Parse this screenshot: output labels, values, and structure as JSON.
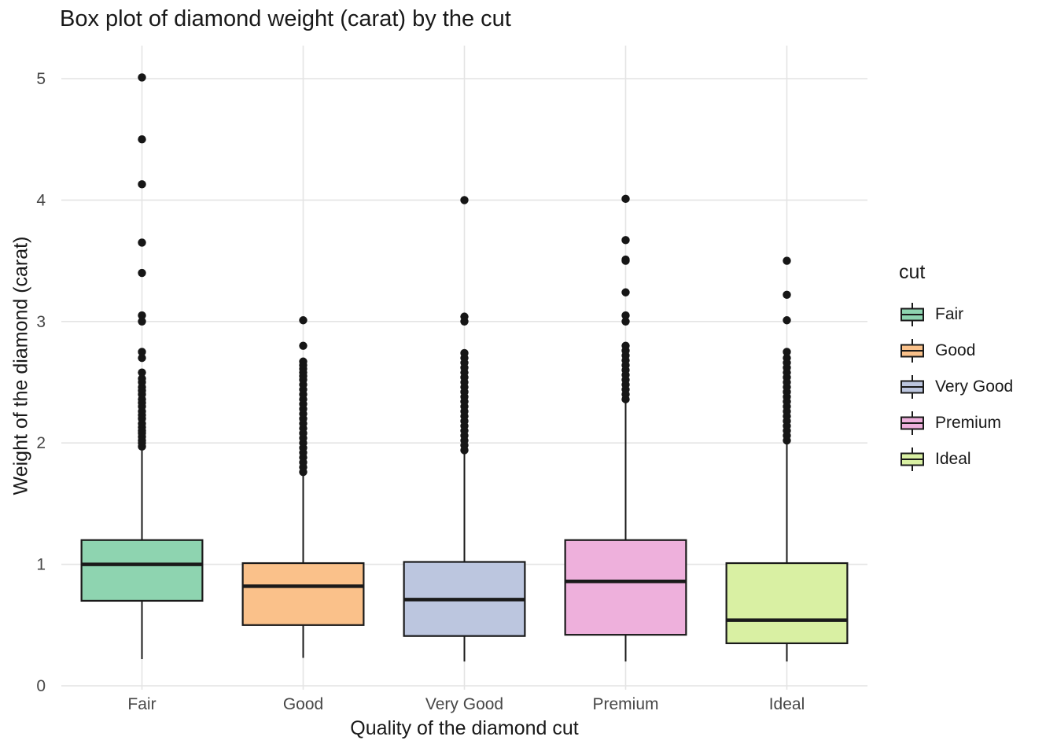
{
  "chart_data": {
    "type": "boxplot",
    "title": "Box plot of diamond weight (carat) by the cut",
    "xlabel": "Quality of the diamond cut",
    "ylabel": "Weight of the diamond (carat)",
    "legend_title": "cut",
    "legend_position": "right",
    "grid": true,
    "ylim": [
      0,
      5.2
    ],
    "yticks": [
      0,
      1,
      2,
      3,
      4,
      5
    ],
    "categories": [
      "Fair",
      "Good",
      "Very Good",
      "Premium",
      "Ideal"
    ],
    "colors": {
      "box_border": "#1a1a1a",
      "outlier": "#161616",
      "gridline": "#e4e4e4",
      "tick_text": "#474747"
    },
    "series": [
      {
        "name": "Fair",
        "color": "#8ED4B0",
        "whisker_low": 0.22,
        "q1": 0.7,
        "median": 1.0,
        "q3": 1.2,
        "whisker_high": 1.95,
        "outliers": [
          1.97,
          2.0,
          2.02,
          2.05,
          2.08,
          2.1,
          2.13,
          2.16,
          2.2,
          2.23,
          2.26,
          2.3,
          2.33,
          2.36,
          2.4,
          2.43,
          2.46,
          2.5,
          2.53,
          2.58,
          2.7,
          2.75,
          3.0,
          3.05,
          3.4,
          3.65,
          4.13,
          4.5,
          5.01
        ]
      },
      {
        "name": "Good",
        "color": "#FAC18A",
        "whisker_low": 0.23,
        "q1": 0.5,
        "median": 0.82,
        "q3": 1.01,
        "whisker_high": 1.74,
        "outliers": [
          1.76,
          1.8,
          1.84,
          1.88,
          1.92,
          1.96,
          2.0,
          2.04,
          2.08,
          2.12,
          2.16,
          2.2,
          2.24,
          2.28,
          2.32,
          2.36,
          2.4,
          2.44,
          2.48,
          2.52,
          2.55,
          2.58,
          2.61,
          2.64,
          2.67,
          2.8,
          3.01
        ]
      },
      {
        "name": "Very Good",
        "color": "#BCC6DF",
        "whisker_low": 0.2,
        "q1": 0.41,
        "median": 0.71,
        "q3": 1.02,
        "whisker_high": 1.92,
        "outliers": [
          1.94,
          1.98,
          2.02,
          2.06,
          2.1,
          2.14,
          2.18,
          2.22,
          2.26,
          2.3,
          2.34,
          2.38,
          2.42,
          2.46,
          2.5,
          2.54,
          2.58,
          2.62,
          2.66,
          2.7,
          2.74,
          3.0,
          3.04,
          4.0
        ]
      },
      {
        "name": "Premium",
        "color": "#EEB0DC",
        "whisker_low": 0.2,
        "q1": 0.42,
        "median": 0.86,
        "q3": 1.2,
        "whisker_high": 2.35,
        "outliers": [
          2.36,
          2.4,
          2.44,
          2.48,
          2.52,
          2.56,
          2.6,
          2.64,
          2.68,
          2.72,
          2.76,
          2.8,
          3.0,
          3.05,
          3.24,
          3.5,
          3.51,
          3.67,
          4.01
        ]
      },
      {
        "name": "Ideal",
        "color": "#D9F0A3",
        "whisker_low": 0.2,
        "q1": 0.35,
        "median": 0.54,
        "q3": 1.01,
        "whisker_high": 2.0,
        "outliers": [
          2.02,
          2.06,
          2.1,
          2.14,
          2.18,
          2.22,
          2.26,
          2.3,
          2.34,
          2.38,
          2.42,
          2.46,
          2.5,
          2.54,
          2.58,
          2.62,
          2.66,
          2.7,
          2.75,
          3.01,
          3.22,
          3.5
        ]
      }
    ]
  }
}
